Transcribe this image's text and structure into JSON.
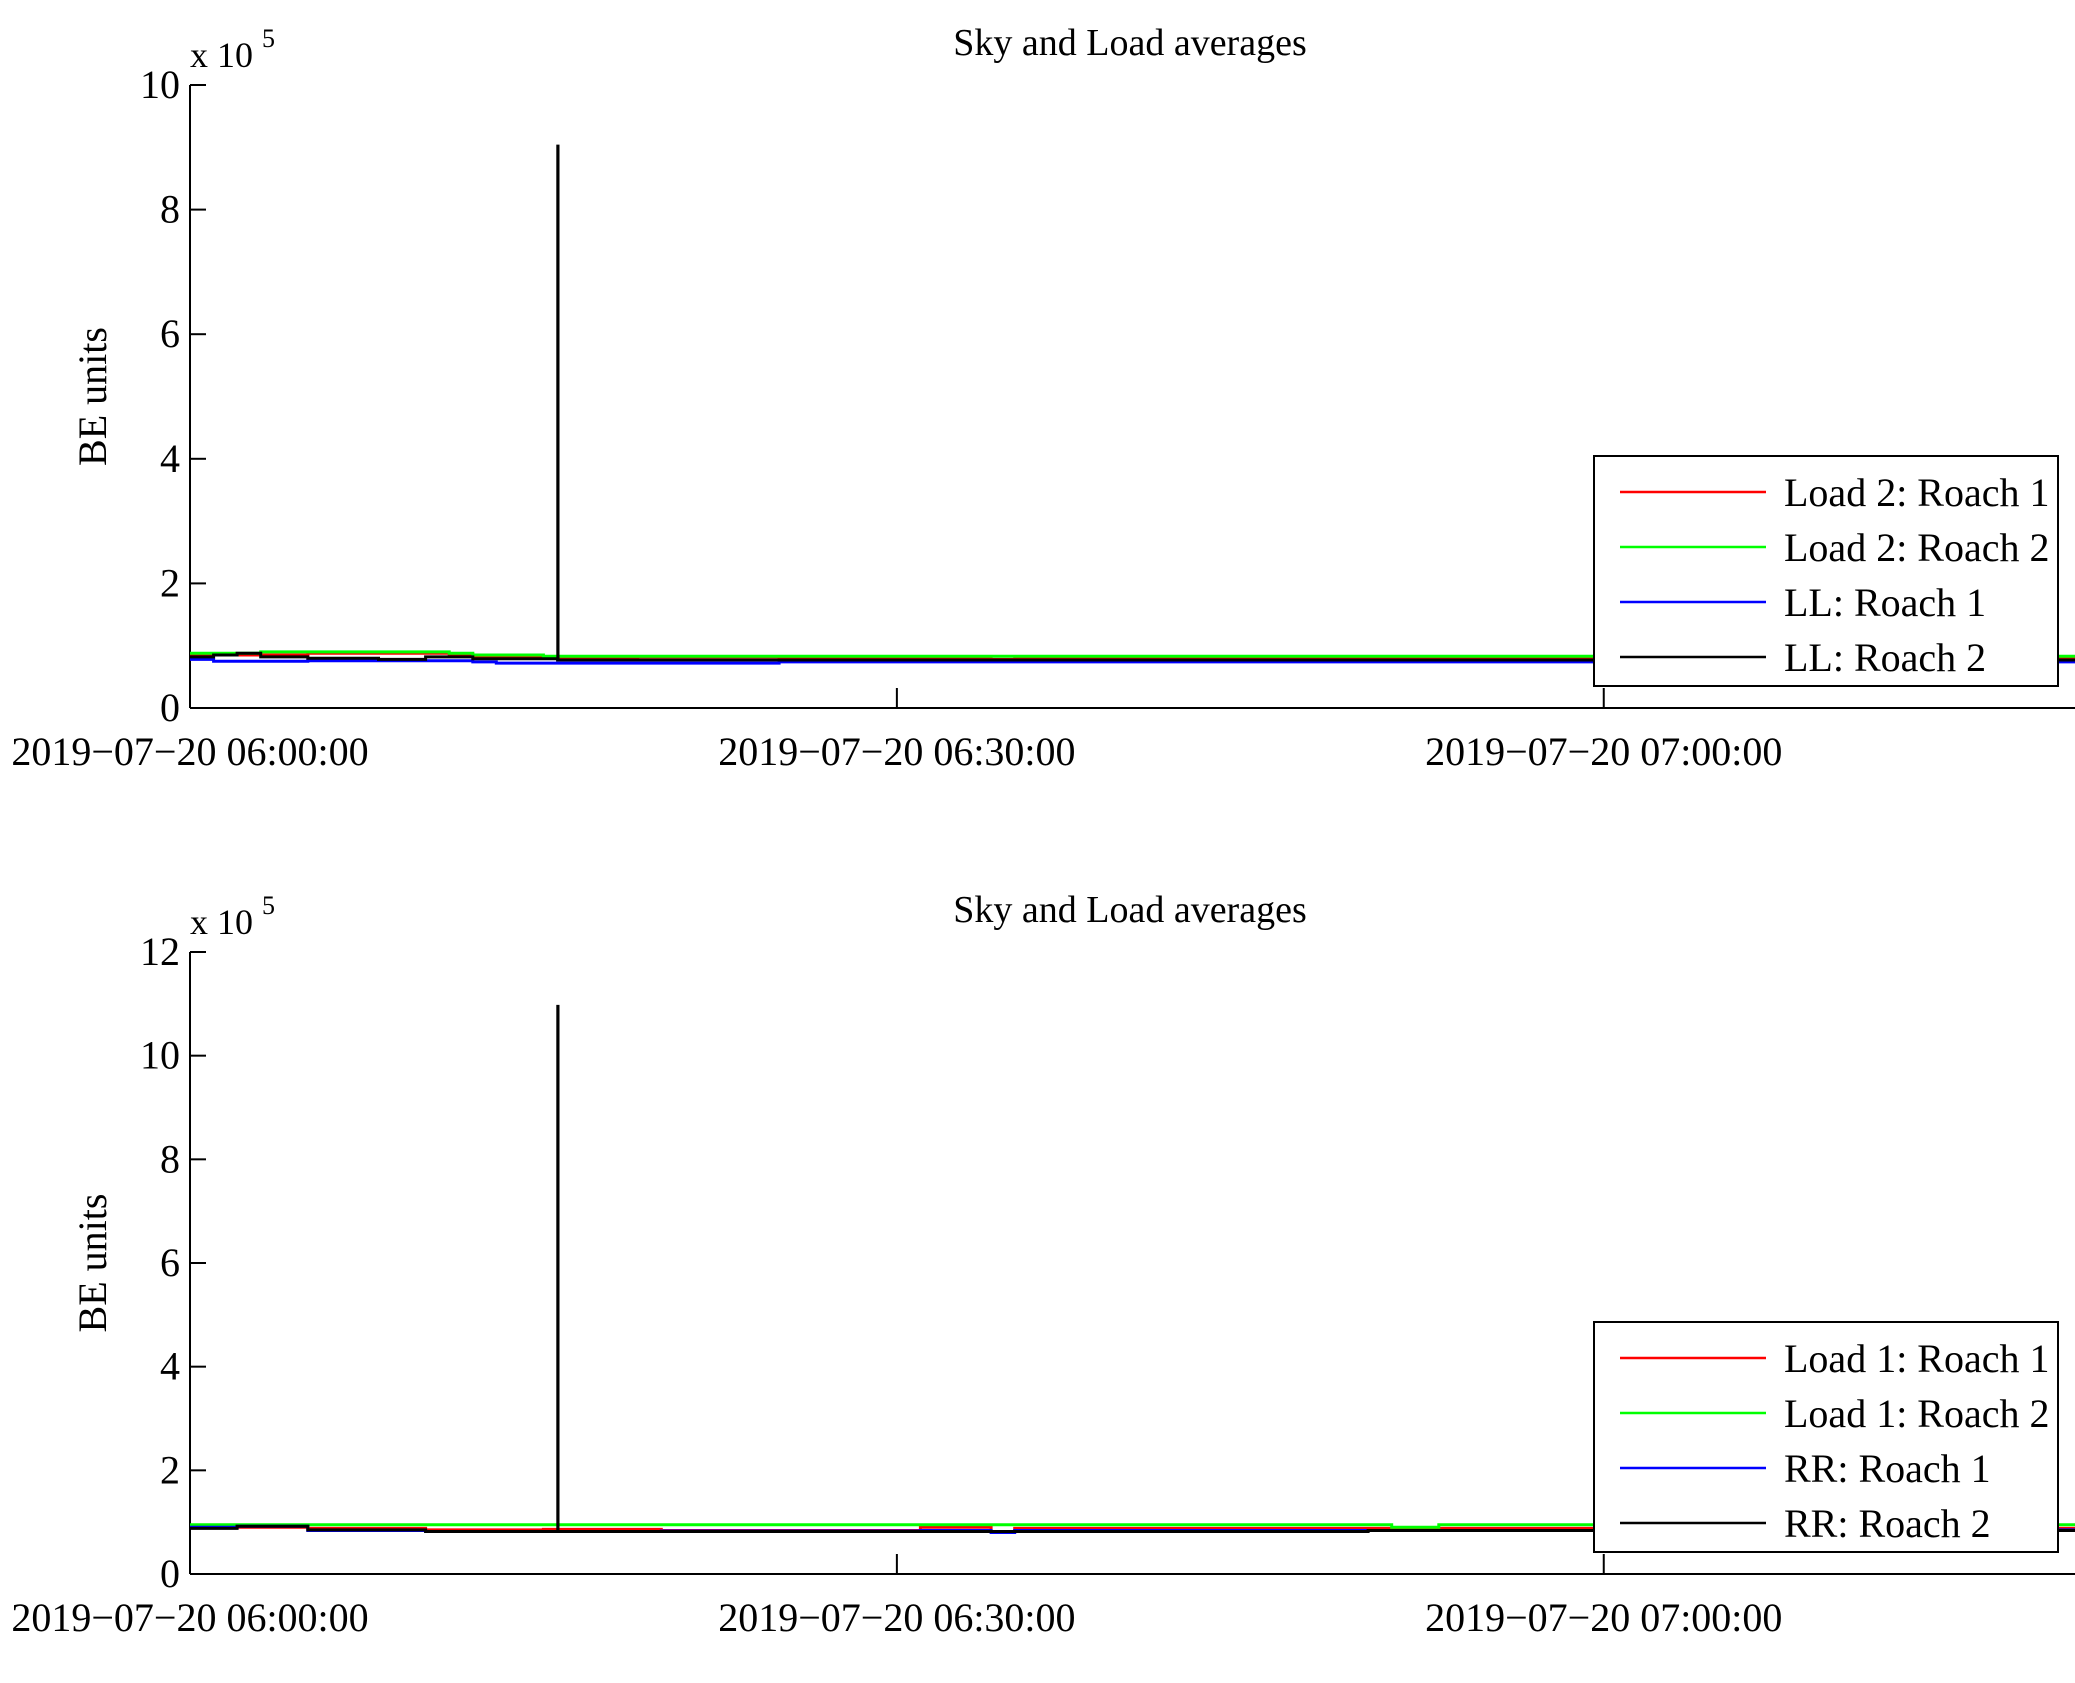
{
  "chart_data": [
    {
      "type": "line",
      "title": "Sky and Load averages",
      "xlabel": "",
      "ylabel": "BE units",
      "y_multiplier_label": "x 10",
      "y_multiplier_exponent": "5",
      "x_range_minutes": [
        0,
        80
      ],
      "x_ticks": [
        {
          "minute": 0,
          "label": "2019−07−20 06:00:00"
        },
        {
          "minute": 30,
          "label": "2019−07−20 06:30:00"
        },
        {
          "minute": 60,
          "label": "2019−07−20 07:00:00"
        }
      ],
      "ylim": [
        0,
        10
      ],
      "y_ticks": [
        0,
        2,
        4,
        6,
        8,
        10
      ],
      "legend_position": "bottom-right",
      "series": [
        {
          "name": "Load 2: Roach 1",
          "color": "#ff0000",
          "x": [
            0,
            5,
            11,
            12,
            15,
            17,
            19,
            25,
            33,
            34,
            35,
            60,
            80
          ],
          "y": [
            0.85,
            0.88,
            0.86,
            0.82,
            0.81,
            0.8,
            0.82,
            0.8,
            0.8,
            0.78,
            0.8,
            0.8,
            0.8
          ]
        },
        {
          "name": "Load 2: Roach 2",
          "color": "#00ff00",
          "x": [
            0,
            3,
            11,
            12,
            15,
            60,
            80
          ],
          "y": [
            0.88,
            0.9,
            0.88,
            0.85,
            0.83,
            0.83,
            0.83
          ]
        },
        {
          "name": "LL: Roach 1",
          "color": "#0000ff",
          "x": [
            0,
            1,
            5,
            12,
            13,
            15,
            20,
            25,
            60,
            80
          ],
          "y": [
            0.78,
            0.75,
            0.76,
            0.74,
            0.72,
            0.72,
            0.72,
            0.74,
            0.74,
            0.74
          ]
        },
        {
          "name": "LL: Roach 2",
          "color": "#000000",
          "x": [
            0,
            1,
            2,
            3,
            5,
            8,
            10,
            12,
            15.6,
            15.61,
            15.62,
            20,
            60,
            80
          ],
          "y": [
            0.82,
            0.85,
            0.88,
            0.82,
            0.8,
            0.78,
            0.82,
            0.79,
            0.77,
            9.02,
            0.77,
            0.77,
            0.77,
            0.77
          ]
        }
      ]
    },
    {
      "type": "line",
      "title": "Sky and Load averages",
      "xlabel": "",
      "ylabel": "BE units",
      "y_multiplier_label": "x 10",
      "y_multiplier_exponent": "5",
      "x_range_minutes": [
        0,
        80
      ],
      "x_ticks": [
        {
          "minute": 0,
          "label": "2019−07−20 06:00:00"
        },
        {
          "minute": 30,
          "label": "2019−07−20 06:30:00"
        },
        {
          "minute": 60,
          "label": "2019−07−20 07:00:00"
        }
      ],
      "ylim": [
        0,
        12
      ],
      "y_ticks": [
        0,
        2,
        4,
        6,
        8,
        10,
        12
      ],
      "legend_position": "bottom-right",
      "series": [
        {
          "name": "Load 1: Roach 1",
          "color": "#ff0000",
          "x": [
            0,
            5,
            10,
            15,
            20,
            25,
            31,
            34,
            35,
            60,
            80
          ],
          "y": [
            0.9,
            0.88,
            0.85,
            0.86,
            0.84,
            0.84,
            0.9,
            0.82,
            0.88,
            0.88,
            0.88
          ]
        },
        {
          "name": "Load 1: Roach 2",
          "color": "#00ff00",
          "x": [
            0,
            5,
            15,
            50,
            51,
            53,
            80
          ],
          "y": [
            0.95,
            0.95,
            0.95,
            0.95,
            0.9,
            0.95,
            0.95
          ]
        },
        {
          "name": "RR: Roach 1",
          "color": "#0000ff",
          "x": [
            0,
            2,
            5,
            10,
            15,
            20,
            31,
            34,
            35,
            60,
            80
          ],
          "y": [
            0.9,
            0.92,
            0.84,
            0.82,
            0.82,
            0.83,
            0.84,
            0.8,
            0.84,
            0.85,
            0.85
          ]
        },
        {
          "name": "RR: Roach 2",
          "color": "#000000",
          "x": [
            0,
            2,
            5,
            10,
            15.6,
            15.61,
            15.62,
            48,
            50,
            80
          ],
          "y": [
            0.88,
            0.92,
            0.85,
            0.82,
            0.82,
            10.95,
            0.82,
            0.82,
            0.84,
            0.84
          ]
        }
      ]
    }
  ]
}
